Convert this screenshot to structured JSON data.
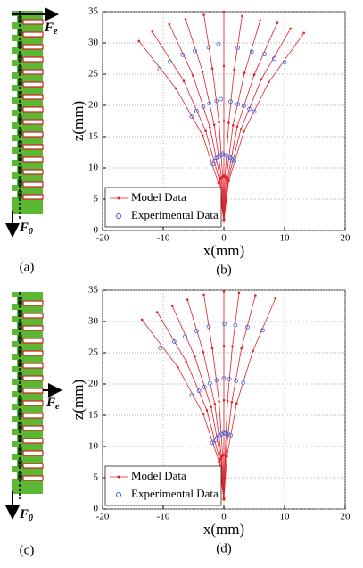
{
  "chart_data": [
    {
      "type": "scatter",
      "panel_label": "(b)",
      "xlabel": "x(mm)",
      "ylabel": "z(mm)",
      "xlim": [
        -20,
        20
      ],
      "ylim": [
        0,
        35
      ],
      "xticks": [
        -20,
        -10,
        0,
        10,
        20
      ],
      "yticks": [
        0,
        5,
        10,
        15,
        20,
        25,
        30,
        35
      ],
      "grid": true,
      "legend": "lower left",
      "series": [
        {
          "name": "Model Data",
          "color": "#e0202a",
          "line": true,
          "marker": "dot",
          "x": [
            0,
            -0.9,
            -3.5,
            -7.9,
            -14,
            null,
            0,
            -0.7,
            -3.0,
            -6.6,
            -11.8,
            null,
            0,
            -0.6,
            -2.3,
            -5.1,
            -9,
            null,
            0,
            -0.4,
            -1.6,
            -3.5,
            -6.3,
            null,
            0,
            -0.2,
            -0.8,
            -1.9,
            -3.3,
            null,
            0,
            0,
            0,
            0,
            0,
            null,
            0,
            0.2,
            0.8,
            1.7,
            3,
            null,
            0,
            0.4,
            1.5,
            3.4,
            6,
            null,
            0,
            0.6,
            2.2,
            5.0,
            8.8,
            null,
            0,
            0.7,
            2.8,
            6.2,
            11,
            null,
            0,
            0.8,
            3.3,
            7.4,
            13.2
          ],
          "y": [
            1.5,
            7.6,
            15.2,
            22.7,
            30.3,
            null,
            1.6,
            8.0,
            15.9,
            23.9,
            31.8,
            null,
            1.7,
            8.3,
            16.5,
            24.8,
            33,
            null,
            1.7,
            8.5,
            16.9,
            25.4,
            33.8,
            null,
            1.7,
            8.6,
            17.3,
            25.9,
            34.5,
            null,
            1.8,
            8.8,
            17.5,
            26.3,
            35,
            null,
            1.7,
            8.6,
            17.2,
            25.7,
            34.3,
            null,
            1.7,
            8.4,
            16.8,
            25.2,
            33.6,
            null,
            1.7,
            8.3,
            16.6,
            24.9,
            33.2,
            null,
            1.6,
            8.1,
            16.2,
            24.2,
            32.3,
            null,
            1.6,
            7.9,
            15.8,
            23.7,
            31.6
          ]
        },
        {
          "name": "Experimental Data",
          "color": "#3060e0",
          "line": false,
          "marker": "circle",
          "x": [
            -1.8,
            -5.3,
            -10.6,
            -1.5,
            -4.5,
            -8.9,
            -1.2,
            -3.4,
            -6.8,
            -0.8,
            -2.4,
            -4.8,
            -0.4,
            -1.2,
            -2.5,
            -0.2,
            -0.5,
            -0.9,
            0.4,
            1.1,
            2.3,
            0.8,
            2.3,
            4.6,
            1.1,
            3.3,
            6.7,
            1.4,
            4.2,
            8.3,
            1.7,
            5.0,
            10.0
          ],
          "y": [
            10.6,
            18.2,
            25.8,
            11.1,
            19.1,
            27.0,
            11.6,
            19.8,
            28.1,
            11.8,
            20.3,
            28.7,
            12.1,
            20.7,
            29.3,
            12.3,
            21,
            29.8,
            12.0,
            20.6,
            29.2,
            11.8,
            20.2,
            28.6,
            11.6,
            19.9,
            28.2,
            11.3,
            19.4,
            27.5,
            11.1,
            19.0,
            26.9
          ]
        }
      ]
    },
    {
      "type": "scatter",
      "panel_label": "(d)",
      "xlabel": "x(mm)",
      "ylabel": "z(mm)",
      "xlim": [
        -20,
        20
      ],
      "ylim": [
        0,
        35
      ],
      "xticks": [
        -20,
        -10,
        0,
        10,
        20
      ],
      "yticks": [
        0,
        5,
        10,
        15,
        20,
        25,
        30,
        35
      ],
      "grid": true,
      "legend": "lower left",
      "series": [
        {
          "name": "Model Data",
          "color": "#e0202a",
          "line": true,
          "marker": "dot",
          "x": [
            0,
            -0.8,
            -3.4,
            -7.6,
            -13.5,
            null,
            0,
            -0.7,
            -2.8,
            -6.2,
            -11,
            null,
            0,
            -0.5,
            -2.1,
            -4.8,
            -8.5,
            null,
            0,
            -0.4,
            -1.5,
            -3.4,
            -6,
            null,
            0,
            -0.2,
            -0.8,
            -1.9,
            -3.3,
            null,
            0,
            0,
            0,
            0,
            0,
            null,
            0,
            0.2,
            0.6,
            1.4,
            2.5,
            null,
            0,
            0.3,
            1.3,
            2.9,
            5.2,
            null,
            0,
            0.5,
            2.1,
            4.8,
            8.5
          ],
          "y": [
            1.5,
            7.6,
            15.2,
            22.7,
            30.3,
            null,
            1.6,
            7.9,
            15.8,
            23.6,
            31.5,
            null,
            1.6,
            8.1,
            16.3,
            24.4,
            32.5,
            null,
            1.7,
            8.4,
            16.8,
            25.1,
            33.5,
            null,
            1.7,
            8.6,
            17.2,
            25.7,
            34.3,
            null,
            1.7,
            8.7,
            17.4,
            26.1,
            34.8,
            null,
            1.7,
            8.7,
            17.3,
            26,
            34.6,
            null,
            1.7,
            8.6,
            17.1,
            25.7,
            34.2,
            null,
            1.7,
            8.4,
            16.9,
            25.3,
            33.7
          ]
        },
        {
          "name": "Experimental Data",
          "color": "#3060e0",
          "line": false,
          "marker": "circle",
          "x": [
            -1.9,
            -5.3,
            -10.5,
            -1.4,
            -4.1,
            -8.2,
            -1.1,
            -3.2,
            -6.4,
            -0.8,
            -2.3,
            -4.5,
            -0.4,
            -1.2,
            -2.5,
            0,
            0,
            0.1,
            0.3,
            0.9,
            1.9,
            0.7,
            2.0,
            3.9,
            1.1,
            3.2,
            6.4
          ],
          "y": [
            10.6,
            18.2,
            25.8,
            11.0,
            18.9,
            26.8,
            11.4,
            19.5,
            27.6,
            11.7,
            20.1,
            28.5,
            12.0,
            20.6,
            29.2,
            12.2,
            20.9,
            29.6,
            12.1,
            20.8,
            29.4,
            12.0,
            20.5,
            29.1,
            11.8,
            20.2,
            28.6
          ]
        }
      ]
    }
  ],
  "diagrams": [
    {
      "label": "(a)",
      "top_force": {
        "symbol": "F",
        "sub": "e"
      },
      "bottom_force": {
        "symbol": "F",
        "sub": "0"
      }
    },
    {
      "label": "(c)",
      "side_force": {
        "symbol": "F",
        "sub": "e"
      },
      "bottom_force": {
        "symbol": "F",
        "sub": "0"
      }
    }
  ]
}
